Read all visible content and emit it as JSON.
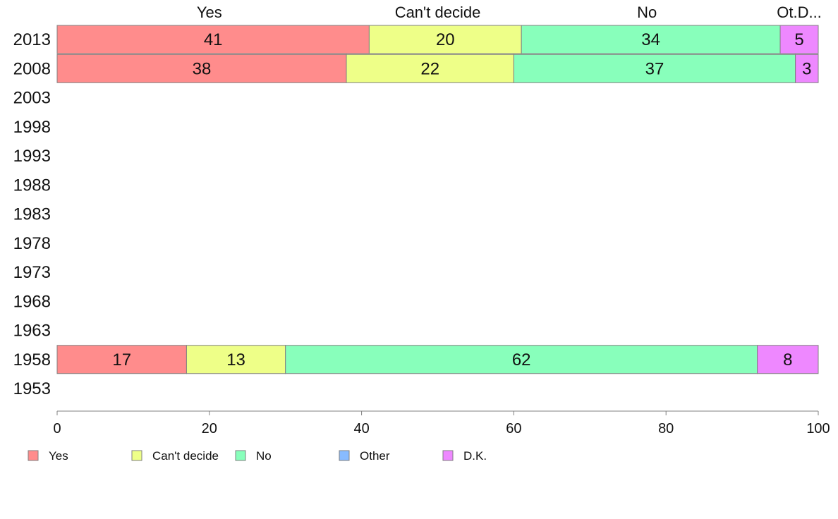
{
  "chart_data": {
    "type": "bar",
    "orientation": "horizontal-stacked",
    "categories": [
      "2013",
      "2008",
      "2003",
      "1998",
      "1993",
      "1988",
      "1983",
      "1978",
      "1973",
      "1968",
      "1963",
      "1958",
      "1953"
    ],
    "series": [
      {
        "name": "Yes",
        "color": "#ff8c8c",
        "values": [
          41,
          38,
          null,
          null,
          null,
          null,
          null,
          null,
          null,
          null,
          null,
          17,
          null
        ]
      },
      {
        "name": "Can't decide",
        "color": "#eeff88",
        "values": [
          20,
          22,
          null,
          null,
          null,
          null,
          null,
          null,
          null,
          null,
          null,
          13,
          null
        ]
      },
      {
        "name": "No",
        "color": "#88ffbb",
        "values": [
          34,
          37,
          null,
          null,
          null,
          null,
          null,
          null,
          null,
          null,
          null,
          62,
          null
        ]
      },
      {
        "name": "Other",
        "color": "#88bbff",
        "values": [
          0,
          0,
          null,
          null,
          null,
          null,
          null,
          null,
          null,
          null,
          null,
          0,
          null
        ]
      },
      {
        "name": "D.K.",
        "color": "#ee88ff",
        "values": [
          5,
          3,
          null,
          null,
          null,
          null,
          null,
          null,
          null,
          null,
          null,
          8,
          null
        ]
      }
    ],
    "top_labels": [
      {
        "text": "Yes",
        "at": 20
      },
      {
        "text": "Can't decide",
        "at": 50
      },
      {
        "text": "No",
        "at": 77.5
      },
      {
        "text": "Ot.D...",
        "at": 97.5
      }
    ],
    "xlim": [
      0,
      100
    ],
    "xticks": [
      "0",
      "20",
      "40",
      "60",
      "80",
      "100"
    ],
    "xlabel": "",
    "ylabel": "",
    "legend_position": "bottom-left",
    "grid": false
  }
}
